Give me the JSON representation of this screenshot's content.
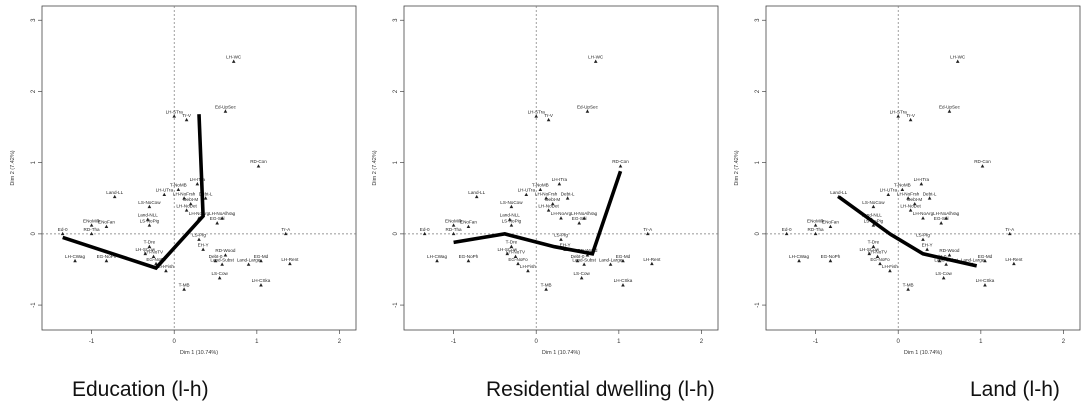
{
  "chart_data": [
    {
      "type": "scatter",
      "caption": "Education (l-h)",
      "xlabel": "Dim 1 (10.74%)",
      "ylabel": "Dim 2 (7.42%)",
      "xlim": [
        -1.6,
        2.2
      ],
      "ylim": [
        -1.35,
        3.2
      ],
      "xticks": [
        -1,
        0,
        1,
        2
      ],
      "yticks": [
        -1,
        0,
        1,
        2,
        3
      ],
      "trajectory": [
        [
          -1.35,
          -0.05
        ],
        [
          -0.22,
          -0.48
        ],
        [
          0.35,
          0.25
        ],
        [
          0.3,
          1.68
        ]
      ]
    },
    {
      "type": "scatter",
      "caption": "Residential dwelling (l-h)",
      "xlabel": "Dim 1 (10.74%)",
      "ylabel": "Dim 2 (7.42%)",
      "xlim": [
        -1.6,
        2.2
      ],
      "ylim": [
        -1.35,
        3.2
      ],
      "xticks": [
        -1,
        0,
        1,
        2
      ],
      "yticks": [
        -1,
        0,
        1,
        2,
        3
      ],
      "trajectory": [
        [
          -1.0,
          -0.12
        ],
        [
          -0.38,
          0.0
        ],
        [
          0.22,
          -0.18
        ],
        [
          0.68,
          -0.28
        ],
        [
          1.02,
          0.88
        ]
      ]
    },
    {
      "type": "scatter",
      "caption": "Land (l-h)",
      "xlabel": "Dim 1 (10.74%)",
      "ylabel": "Dim 2 (7.42%)",
      "xlim": [
        -1.6,
        2.2
      ],
      "ylim": [
        -1.35,
        3.2
      ],
      "xticks": [
        -1,
        0,
        1,
        2
      ],
      "yticks": [
        -1,
        0,
        1,
        2,
        3
      ],
      "trajectory": [
        [
          -0.72,
          0.52
        ],
        [
          -0.1,
          0.0
        ],
        [
          0.3,
          -0.28
        ],
        [
          0.95,
          -0.45
        ]
      ]
    }
  ],
  "points": [
    {
      "label": "LH-WC",
      "x": 0.72,
      "y": 2.42
    },
    {
      "label": "Ed-UpSec",
      "x": 0.62,
      "y": 1.72
    },
    {
      "label": "LH-STra",
      "x": 0.0,
      "y": 1.65
    },
    {
      "label": "Tr-V",
      "x": 0.15,
      "y": 1.6
    },
    {
      "label": "RD-Con",
      "x": 1.02,
      "y": 0.95
    },
    {
      "label": "LH-ITra",
      "x": 0.28,
      "y": 0.7
    },
    {
      "label": "T-NoMB",
      "x": 0.05,
      "y": 0.62
    },
    {
      "label": "LH-UTra",
      "x": -0.12,
      "y": 0.55
    },
    {
      "label": "LH-NoFrsh",
      "x": 0.12,
      "y": 0.5
    },
    {
      "label": "Debt-L",
      "x": 0.38,
      "y": 0.5
    },
    {
      "label": "Land-LL",
      "x": -0.72,
      "y": 0.52
    },
    {
      "label": "Debt-M",
      "x": 0.2,
      "y": 0.42
    },
    {
      "label": "LS-NoCow",
      "x": -0.3,
      "y": 0.38
    },
    {
      "label": "LH-NoDet",
      "x": 0.15,
      "y": 0.33
    },
    {
      "label": "LH-NoArg",
      "x": 0.3,
      "y": 0.22
    },
    {
      "label": "LH-NoAllVag",
      "x": 0.58,
      "y": 0.22
    },
    {
      "label": "EG-Sel",
      "x": 0.52,
      "y": 0.15
    },
    {
      "label": "Land-NLL",
      "x": -0.32,
      "y": 0.2
    },
    {
      "label": "LS-NoPig",
      "x": -0.3,
      "y": 0.12
    },
    {
      "label": "ENoMilk",
      "x": -1.0,
      "y": 0.12
    },
    {
      "label": "ENoFan",
      "x": -0.82,
      "y": 0.1
    },
    {
      "label": "RD-Tha",
      "x": -1.0,
      "y": 0.0
    },
    {
      "label": "Ed-0",
      "x": -1.35,
      "y": 0.0
    },
    {
      "label": "Tr-A",
      "x": 1.35,
      "y": 0.0
    },
    {
      "label": "LS-Pig",
      "x": 0.3,
      "y": -0.08
    },
    {
      "label": "T-Dre",
      "x": -0.3,
      "y": -0.18
    },
    {
      "label": "EH-Y",
      "x": 0.35,
      "y": -0.22
    },
    {
      "label": "LH-SCow",
      "x": -0.35,
      "y": -0.28
    },
    {
      "label": "LH-NoTV",
      "x": -0.25,
      "y": -0.32
    },
    {
      "label": "RD-Wood",
      "x": 0.62,
      "y": -0.3
    },
    {
      "label": "Debt-0",
      "x": 0.5,
      "y": -0.38
    },
    {
      "label": "Land-Subst",
      "x": 0.58,
      "y": -0.43
    },
    {
      "label": "Land-Large",
      "x": 0.9,
      "y": -0.43
    },
    {
      "label": "EG-Md",
      "x": 1.05,
      "y": -0.38
    },
    {
      "label": "LH-CWag",
      "x": -1.2,
      "y": -0.38
    },
    {
      "label": "EG-NoPh",
      "x": -0.82,
      "y": -0.38
    },
    {
      "label": "EG-NoFo",
      "x": -0.22,
      "y": -0.42
    },
    {
      "label": "LH-Rent",
      "x": 1.4,
      "y": -0.42
    },
    {
      "label": "LH-Fish",
      "x": -0.1,
      "y": -0.52
    },
    {
      "label": "LS-Cow",
      "x": 0.55,
      "y": -0.62
    },
    {
      "label": "LH-CSka",
      "x": 1.05,
      "y": -0.72
    },
    {
      "label": "T-MB",
      "x": 0.12,
      "y": -0.78
    }
  ]
}
